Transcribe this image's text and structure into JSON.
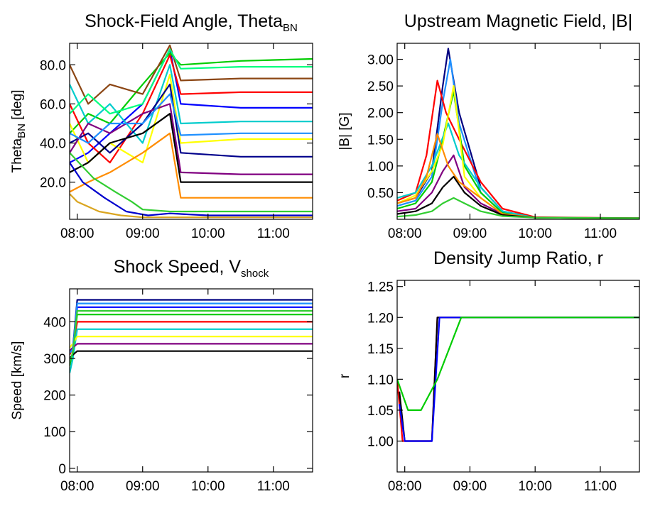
{
  "chart_data": [
    {
      "type": "line",
      "title": "Shock-Field Angle, Theta",
      "title_sub": "BN",
      "ylabel": "Theta",
      "ylabel_sub": "BN",
      "ylabel_suffix": " [deg]",
      "xlabel": "",
      "xlim": [
        "07:53",
        "11:36"
      ],
      "ylim": [
        1,
        91
      ],
      "xticks": [
        "08:00",
        "09:00",
        "10:00",
        "11:00"
      ],
      "yticks": [
        20.0,
        40.0,
        60.0,
        80.0
      ],
      "ytick_labels": [
        "20.0",
        "40.0",
        "60.0",
        "80.0"
      ],
      "grid": false,
      "series": [
        {
          "color": "#0000ff",
          "x": [
            "07:53",
            "08:10",
            "08:30",
            "09:00",
            "09:25",
            "09:35",
            "10:30",
            "11:36"
          ],
          "y": [
            30,
            35,
            45,
            60,
            88,
            60,
            58,
            58
          ]
        },
        {
          "color": "#00cc00",
          "x": [
            "07:53",
            "08:10",
            "08:30",
            "09:00",
            "09:25",
            "09:35",
            "10:30",
            "11:36"
          ],
          "y": [
            45,
            55,
            50,
            70,
            86,
            80,
            82,
            83
          ]
        },
        {
          "color": "#ff0000",
          "x": [
            "07:53",
            "08:10",
            "08:30",
            "09:00",
            "09:25",
            "09:35",
            "10:30",
            "11:36"
          ],
          "y": [
            60,
            40,
            30,
            55,
            85,
            65,
            66,
            66
          ]
        },
        {
          "color": "#ffff00",
          "x": [
            "07:53",
            "08:10",
            "08:30",
            "09:00",
            "09:25",
            "09:35",
            "10:30",
            "11:36"
          ],
          "y": [
            50,
            30,
            40,
            30,
            75,
            40,
            42,
            42
          ]
        },
        {
          "color": "#00cccc",
          "x": [
            "07:53",
            "08:10",
            "08:30",
            "09:00",
            "09:25",
            "09:35",
            "10:30",
            "11:36"
          ],
          "y": [
            70,
            50,
            60,
            40,
            80,
            50,
            51,
            51
          ]
        },
        {
          "color": "#00008b",
          "x": [
            "07:53",
            "08:10",
            "08:30",
            "09:00",
            "09:25",
            "09:35",
            "10:30",
            "11:36"
          ],
          "y": [
            40,
            45,
            35,
            50,
            70,
            35,
            33,
            33
          ]
        },
        {
          "color": "#8b4513",
          "x": [
            "07:53",
            "08:10",
            "08:30",
            "09:00",
            "09:25",
            "09:35",
            "10:30",
            "11:36"
          ],
          "y": [
            80,
            60,
            70,
            65,
            90,
            72,
            73,
            73
          ]
        },
        {
          "color": "#800080",
          "x": [
            "07:53",
            "08:10",
            "08:30",
            "09:00",
            "09:25",
            "09:35",
            "10:30",
            "11:36"
          ],
          "y": [
            35,
            50,
            45,
            55,
            60,
            25,
            24,
            24
          ]
        },
        {
          "color": "#000000",
          "x": [
            "07:53",
            "08:10",
            "08:30",
            "09:00",
            "09:25",
            "09:35",
            "10:30",
            "11:36"
          ],
          "y": [
            25,
            30,
            40,
            45,
            55,
            20,
            20,
            20
          ]
        },
        {
          "color": "#00ff7f",
          "x": [
            "07:53",
            "08:10",
            "08:30",
            "09:00",
            "09:25",
            "09:35",
            "10:30",
            "11:36"
          ],
          "y": [
            55,
            65,
            55,
            60,
            88,
            78,
            79,
            79
          ]
        },
        {
          "color": "#ff8c00",
          "x": [
            "07:53",
            "08:10",
            "08:30",
            "09:00",
            "09:25",
            "09:35",
            "10:30",
            "11:36"
          ],
          "y": [
            15,
            20,
            25,
            35,
            45,
            12,
            12,
            12
          ]
        },
        {
          "color": "#1e90ff",
          "x": [
            "07:53",
            "08:10",
            "08:30",
            "09:00",
            "09:25",
            "09:35",
            "10:30",
            "11:36"
          ],
          "y": [
            45,
            40,
            50,
            50,
            65,
            44,
            45,
            45
          ]
        },
        {
          "color": "#daa520",
          "x": [
            "07:53",
            "08:00",
            "08:20",
            "08:40",
            "09:00",
            "09:25",
            "10:00",
            "11:00",
            "11:36"
          ],
          "y": [
            14,
            10,
            5,
            3,
            2,
            2,
            2,
            2,
            2
          ]
        },
        {
          "color": "#0000cd",
          "x": [
            "07:53",
            "08:05",
            "08:25",
            "08:45",
            "09:05",
            "09:25",
            "10:00",
            "11:00",
            "11:36"
          ],
          "y": [
            30,
            20,
            12,
            5,
            3,
            4,
            3,
            3,
            3
          ]
        },
        {
          "color": "#32cd32",
          "x": [
            "07:53",
            "08:15",
            "08:35",
            "08:50",
            "09:00",
            "09:25",
            "10:00",
            "11:00",
            "11:36"
          ],
          "y": [
            35,
            22,
            15,
            10,
            6,
            5,
            5,
            5,
            5
          ]
        }
      ]
    },
    {
      "type": "line",
      "title": "Upstream Magnetic Field, |B|",
      "ylabel": "|B| [G]",
      "xlabel": "",
      "xlim": [
        "07:53",
        "11:36"
      ],
      "ylim": [
        0.0,
        3.3
      ],
      "xticks": [
        "08:00",
        "09:00",
        "10:00",
        "11:00"
      ],
      "yticks": [
        0.5,
        1.0,
        1.5,
        2.0,
        2.5,
        3.0
      ],
      "ytick_labels": [
        "0.50",
        "1.00",
        "1.50",
        "2.00",
        "2.50",
        "3.00"
      ],
      "grid": false,
      "series": [
        {
          "color": "#000080",
          "x": [
            "07:53",
            "08:10",
            "08:25",
            "08:35",
            "08:40",
            "08:50",
            "09:10",
            "09:30",
            "10:00",
            "11:36"
          ],
          "y": [
            0.3,
            0.4,
            0.9,
            2.5,
            3.2,
            2.0,
            0.6,
            0.15,
            0.03,
            0.02
          ]
        },
        {
          "color": "#1e90ff",
          "x": [
            "07:53",
            "08:10",
            "08:25",
            "08:35",
            "08:42",
            "08:50",
            "09:10",
            "09:30",
            "10:00",
            "11:36"
          ],
          "y": [
            0.25,
            0.35,
            0.8,
            2.2,
            3.0,
            1.8,
            0.5,
            0.12,
            0.03,
            0.02
          ]
        },
        {
          "color": "#ff0000",
          "x": [
            "07:53",
            "08:10",
            "08:20",
            "08:30",
            "08:38",
            "08:50",
            "09:10",
            "09:30",
            "10:00",
            "11:36"
          ],
          "y": [
            0.35,
            0.5,
            1.2,
            2.6,
            2.0,
            1.5,
            0.7,
            0.2,
            0.04,
            0.02
          ]
        },
        {
          "color": "#00cc00",
          "x": [
            "07:53",
            "08:10",
            "08:25",
            "08:35",
            "08:45",
            "08:55",
            "09:10",
            "09:30",
            "10:00",
            "11:36"
          ],
          "y": [
            0.2,
            0.3,
            0.7,
            1.5,
            2.4,
            1.0,
            0.5,
            0.12,
            0.03,
            0.02
          ]
        },
        {
          "color": "#00cccc",
          "x": [
            "07:53",
            "08:10",
            "08:25",
            "08:40",
            "08:50",
            "09:00",
            "09:10",
            "09:30",
            "10:00",
            "11:36"
          ],
          "y": [
            0.4,
            0.5,
            1.0,
            1.8,
            1.2,
            0.9,
            0.6,
            0.15,
            0.03,
            0.02
          ]
        },
        {
          "color": "#ffff00",
          "x": [
            "07:53",
            "08:10",
            "08:25",
            "08:35",
            "08:45",
            "08:55",
            "09:10",
            "09:30",
            "10:00",
            "11:36"
          ],
          "y": [
            0.3,
            0.45,
            0.9,
            1.4,
            2.5,
            0.8,
            0.4,
            0.1,
            0.03,
            0.02
          ]
        },
        {
          "color": "#800080",
          "x": [
            "07:53",
            "08:10",
            "08:25",
            "08:35",
            "08:45",
            "08:55",
            "09:10",
            "09:30",
            "10:00",
            "11:36"
          ],
          "y": [
            0.15,
            0.2,
            0.5,
            0.9,
            1.2,
            0.6,
            0.3,
            0.1,
            0.03,
            0.02
          ]
        },
        {
          "color": "#ff8c00",
          "x": [
            "07:53",
            "08:10",
            "08:20",
            "08:30",
            "08:40",
            "08:50",
            "09:10",
            "09:30",
            "10:00",
            "11:36"
          ],
          "y": [
            0.3,
            0.4,
            0.8,
            1.6,
            1.0,
            0.7,
            0.4,
            0.1,
            0.03,
            0.02
          ]
        },
        {
          "color": "#000000",
          "x": [
            "07:53",
            "08:10",
            "08:25",
            "08:35",
            "08:45",
            "08:55",
            "09:10",
            "09:30",
            "10:00",
            "11:36"
          ],
          "y": [
            0.1,
            0.15,
            0.3,
            0.6,
            0.8,
            0.5,
            0.25,
            0.08,
            0.03,
            0.02
          ]
        },
        {
          "color": "#32cd32",
          "x": [
            "07:53",
            "08:10",
            "08:25",
            "08:35",
            "08:45",
            "08:55",
            "09:10",
            "09:30",
            "10:00",
            "11:36"
          ],
          "y": [
            0.05,
            0.08,
            0.15,
            0.3,
            0.4,
            0.3,
            0.15,
            0.06,
            0.03,
            0.02
          ]
        }
      ]
    },
    {
      "type": "line",
      "title": "Shock Speed, V",
      "title_sub": "shock",
      "ylabel": "Speed [km/s]",
      "xlabel": "",
      "xlim": [
        "07:53",
        "11:36"
      ],
      "ylim": [
        -10,
        490
      ],
      "xticks": [
        "08:00",
        "09:00",
        "10:00",
        "11:00"
      ],
      "yticks": [
        0,
        100,
        200,
        300,
        400
      ],
      "ytick_labels": [
        "0",
        "100",
        "200",
        "300",
        "400"
      ],
      "grid": false,
      "series": [
        {
          "color": "#000080",
          "x": [
            "07:53",
            "07:56",
            "08:00",
            "11:36"
          ],
          "y": [
            320,
            330,
            460,
            460
          ]
        },
        {
          "color": "#0000ff",
          "x": [
            "07:53",
            "07:56",
            "08:00",
            "11:36"
          ],
          "y": [
            300,
            310,
            440,
            440
          ]
        },
        {
          "color": "#00cc00",
          "x": [
            "07:53",
            "07:56",
            "08:00",
            "11:36"
          ],
          "y": [
            280,
            320,
            420,
            420
          ]
        },
        {
          "color": "#ff0000",
          "x": [
            "07:53",
            "07:56",
            "08:00",
            "11:36"
          ],
          "y": [
            310,
            330,
            400,
            400
          ]
        },
        {
          "color": "#00cccc",
          "x": [
            "07:53",
            "07:56",
            "08:00",
            "11:36"
          ],
          "y": [
            260,
            300,
            380,
            380
          ]
        },
        {
          "color": "#ffff00",
          "x": [
            "07:53",
            "07:56",
            "08:00",
            "11:36"
          ],
          "y": [
            330,
            340,
            360,
            360
          ]
        },
        {
          "color": "#800080",
          "x": [
            "07:53",
            "07:56",
            "08:00",
            "11:36"
          ],
          "y": [
            320,
            330,
            340,
            340
          ]
        },
        {
          "color": "#000000",
          "x": [
            "07:53",
            "07:56",
            "08:00",
            "11:36"
          ],
          "y": [
            300,
            310,
            320,
            320
          ]
        },
        {
          "color": "#1e90ff",
          "x": [
            "07:53",
            "07:56",
            "08:00",
            "11:36"
          ],
          "y": [
            315,
            325,
            450,
            450
          ]
        },
        {
          "color": "#32cd32",
          "x": [
            "07:53",
            "07:56",
            "08:00",
            "11:36"
          ],
          "y": [
            290,
            315,
            430,
            430
          ]
        }
      ]
    },
    {
      "type": "line",
      "title": "Density Jump Ratio, r",
      "ylabel": "r",
      "xlabel": "",
      "xlim": [
        "07:53",
        "11:36"
      ],
      "ylim": [
        0.95,
        1.26
      ],
      "xticks": [
        "08:00",
        "09:00",
        "10:00",
        "11:00"
      ],
      "yticks": [
        1.0,
        1.05,
        1.1,
        1.15,
        1.2,
        1.25
      ],
      "ytick_labels": [
        "1.00",
        "1.05",
        "1.10",
        "1.15",
        "1.20",
        "1.25"
      ],
      "grid": false,
      "series": [
        {
          "color": "#ff0000",
          "x": [
            "07:53",
            "07:58",
            "08:25",
            "08:30",
            "11:36"
          ],
          "y": [
            1.1,
            1.0,
            1.0,
            1.2,
            1.2
          ]
        },
        {
          "color": "#000000",
          "x": [
            "07:55",
            "08:00",
            "08:25",
            "08:30",
            "11:36"
          ],
          "y": [
            1.08,
            1.0,
            1.0,
            1.2,
            1.2
          ]
        },
        {
          "color": "#0000ff",
          "x": [
            "07:55",
            "08:00",
            "08:25",
            "08:32",
            "11:36"
          ],
          "y": [
            1.06,
            1.0,
            1.0,
            1.2,
            1.2
          ]
        },
        {
          "color": "#00cc00",
          "x": [
            "07:53",
            "08:03",
            "08:15",
            "08:30",
            "08:52",
            "11:36"
          ],
          "y": [
            1.1,
            1.05,
            1.05,
            1.1,
            1.2,
            1.2
          ]
        }
      ]
    }
  ]
}
